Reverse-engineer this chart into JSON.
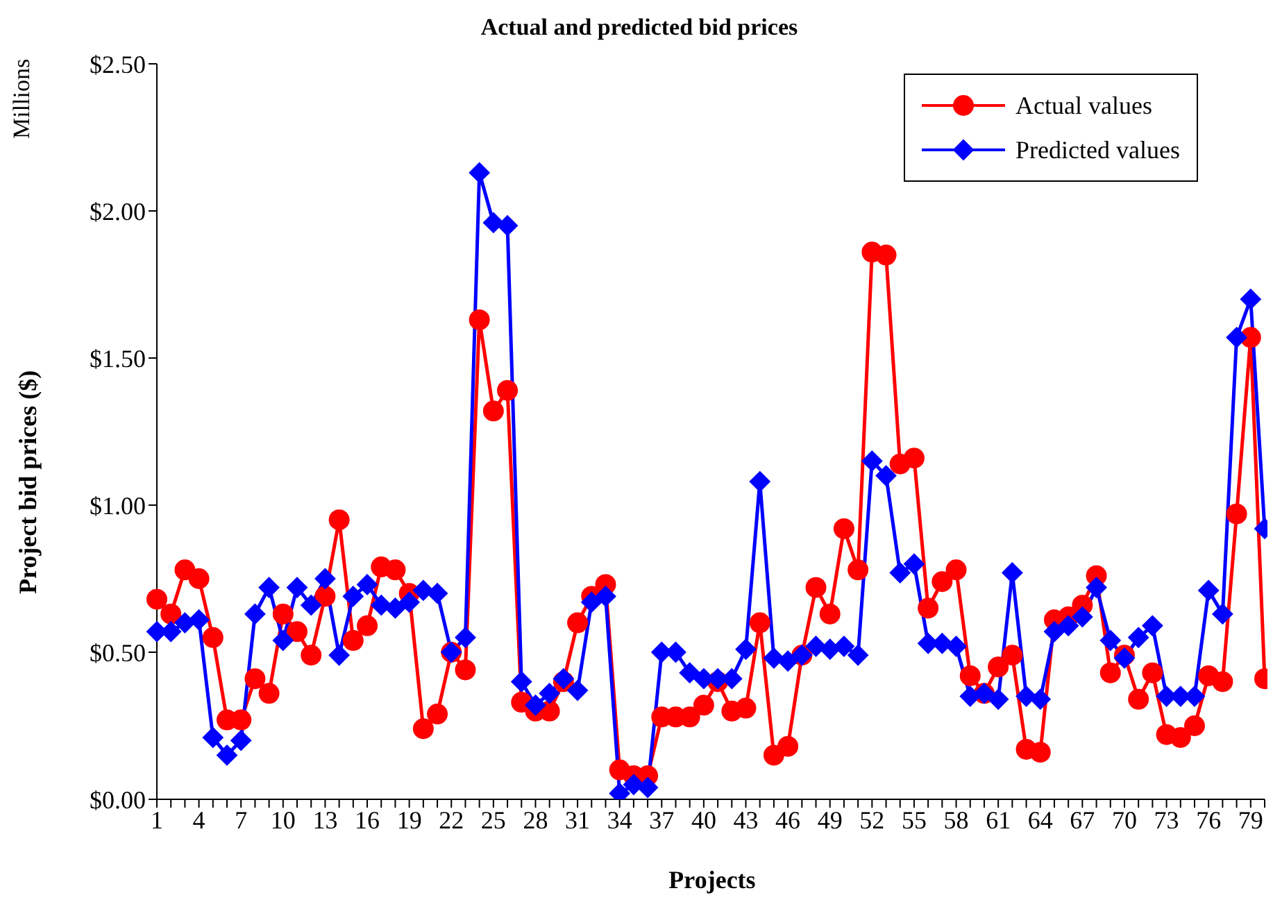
{
  "chart_data": {
    "type": "line",
    "title": "Actual and predicted bid prices",
    "xlabel": "Projects",
    "ylabel": "Project bid prices ($)",
    "annotations": [
      "Millions"
    ],
    "categories": [
      "1",
      null,
      null,
      "4",
      null,
      null,
      "7",
      null,
      null,
      "10",
      null,
      null,
      "13",
      null,
      null,
      "16",
      null,
      null,
      "19",
      null,
      null,
      "22",
      null,
      null,
      "25",
      null,
      null,
      "28",
      null,
      null,
      "31",
      null,
      null,
      "34",
      null,
      null,
      "37",
      null,
      null,
      "40",
      null,
      null,
      "43",
      null,
      null,
      "46",
      null,
      null,
      "49",
      null,
      null,
      "52",
      null,
      null,
      "55",
      null,
      null,
      "58",
      null,
      null,
      "61",
      null,
      null,
      "64",
      null,
      null,
      "67",
      null,
      null,
      "70",
      null,
      null,
      "73",
      null,
      null,
      "76",
      null,
      null,
      "79",
      null
    ],
    "series": [
      {
        "name": "Actual values",
        "color": "#ff0000",
        "marker": "circle",
        "values": [
          0.68,
          0.63,
          0.78,
          0.75,
          0.55,
          0.27,
          0.27,
          0.41,
          0.36,
          0.63,
          0.57,
          0.49,
          0.69,
          0.95,
          0.54,
          0.59,
          0.79,
          0.78,
          0.7,
          0.24,
          0.29,
          0.5,
          0.44,
          1.63,
          1.32,
          1.39,
          0.33,
          0.3,
          0.3,
          0.4,
          0.6,
          0.69,
          0.73,
          0.1,
          0.08,
          0.08,
          0.28,
          0.28,
          0.28,
          0.32,
          0.4,
          0.3,
          0.31,
          0.6,
          0.15,
          0.18,
          0.49,
          0.72,
          0.63,
          0.92,
          0.78,
          1.86,
          1.85,
          1.14,
          1.16,
          0.65,
          0.74,
          0.78,
          0.42,
          0.36,
          0.45,
          0.49,
          0.17,
          0.16,
          0.61,
          0.62,
          0.66,
          0.76,
          0.43,
          0.49,
          0.34,
          0.43,
          0.22,
          0.21,
          0.25,
          0.42,
          0.4,
          0.97,
          1.57,
          0.41
        ]
      },
      {
        "name": "Predicted values",
        "color": "#0000ff",
        "marker": "diamond",
        "values": [
          0.57,
          0.57,
          0.6,
          0.61,
          0.21,
          0.15,
          0.2,
          0.63,
          0.72,
          0.54,
          0.72,
          0.66,
          0.75,
          0.49,
          0.69,
          0.73,
          0.66,
          0.65,
          0.67,
          0.71,
          0.7,
          0.5,
          0.55,
          2.13,
          1.96,
          1.95,
          0.4,
          0.32,
          0.36,
          0.41,
          0.37,
          0.67,
          0.69,
          0.02,
          0.05,
          0.04,
          0.5,
          0.5,
          0.43,
          0.41,
          0.41,
          0.41,
          0.51,
          1.08,
          0.48,
          0.47,
          0.49,
          0.52,
          0.51,
          0.52,
          0.49,
          1.15,
          1.1,
          0.77,
          0.8,
          0.53,
          0.53,
          0.52,
          0.35,
          0.36,
          0.34,
          0.77,
          0.35,
          0.34,
          0.57,
          0.59,
          0.62,
          0.72,
          0.54,
          0.48,
          0.55,
          0.59,
          0.35,
          0.35,
          0.35,
          0.71,
          0.63,
          1.57,
          1.7,
          0.92
        ]
      }
    ],
    "ylim": [
      0,
      2.5
    ],
    "yticks": [
      {
        "value": 0,
        "label": "$0.00"
      },
      {
        "value": 0.5,
        "label": "$0.50"
      },
      {
        "value": 1,
        "label": "$1.00"
      },
      {
        "value": 1.5,
        "label": "$1.50"
      },
      {
        "value": 2,
        "label": "$2.00"
      },
      {
        "value": 2.5,
        "label": "$2.50"
      }
    ],
    "legend": "top right",
    "grid": false,
    "line_style": "solid"
  }
}
